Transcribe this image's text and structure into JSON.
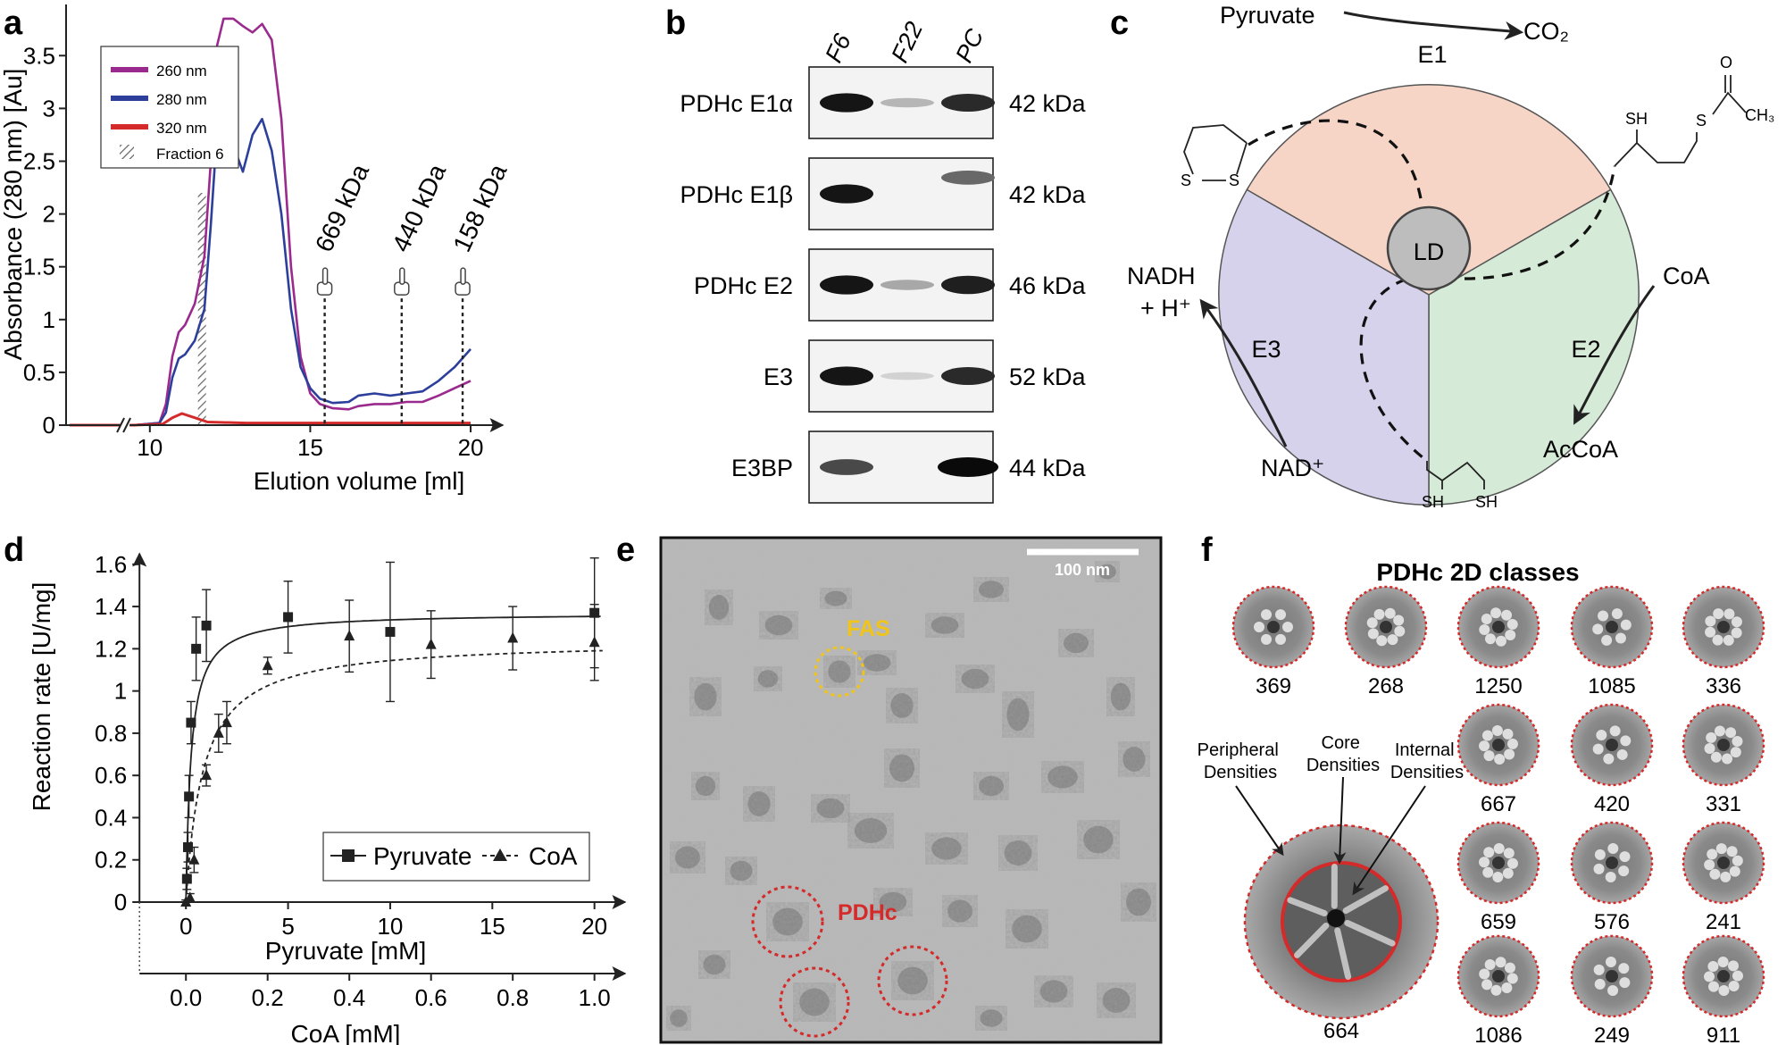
{
  "panels": {
    "a": "a",
    "b": "b",
    "c": "c",
    "d": "d",
    "e": "e",
    "f": "f"
  },
  "panel_a": {
    "chart_data": {
      "type": "line",
      "xlabel": "Elution volume [ml]",
      "ylabel": "Absorbance (280 nm) [Au]",
      "xlim": [
        7.5,
        20.5
      ],
      "ylim": [
        0,
        3.9
      ],
      "x_ticks": [
        10,
        15,
        20
      ],
      "y_ticks": [
        0,
        0.5,
        1,
        1.5,
        2,
        2.5,
        3,
        3.5
      ],
      "x_break_at": 9.2,
      "legend_position": "top-left",
      "series": [
        {
          "name": "260 nm",
          "color": "#9b2a8e",
          "x": [
            7.5,
            9.1,
            9.5,
            10.3,
            10.5,
            10.7,
            10.9,
            11.1,
            11.4,
            11.7,
            11.9,
            12.1,
            12.3,
            12.6,
            12.9,
            13.2,
            13.5,
            13.8,
            14.1,
            14.4,
            14.7,
            15.0,
            15.3,
            15.7,
            16.2,
            16.5,
            17.0,
            17.5,
            18.0,
            18.5,
            19.0,
            19.5,
            20.0
          ],
          "y": [
            0.0,
            0.0,
            0.0,
            0.02,
            0.2,
            0.65,
            0.88,
            0.95,
            1.15,
            1.6,
            2.5,
            3.6,
            3.85,
            3.85,
            3.78,
            3.72,
            3.8,
            3.65,
            2.9,
            1.5,
            0.65,
            0.3,
            0.2,
            0.16,
            0.15,
            0.18,
            0.2,
            0.2,
            0.22,
            0.22,
            0.28,
            0.35,
            0.42
          ]
        },
        {
          "name": "280 nm",
          "color": "#2c3f9b",
          "x": [
            7.5,
            9.1,
            9.5,
            10.3,
            10.5,
            10.7,
            10.9,
            11.1,
            11.4,
            11.7,
            11.9,
            12.1,
            12.3,
            12.6,
            12.9,
            13.2,
            13.5,
            13.8,
            14.1,
            14.4,
            14.7,
            15.0,
            15.3,
            15.7,
            16.2,
            16.5,
            17.0,
            17.5,
            18.0,
            18.5,
            19.0,
            19.5,
            20.0
          ],
          "y": [
            0.0,
            0.0,
            0.0,
            0.02,
            0.12,
            0.45,
            0.63,
            0.67,
            0.8,
            1.1,
            1.9,
            2.8,
            3.05,
            2.65,
            2.4,
            2.75,
            2.9,
            2.6,
            2.0,
            1.1,
            0.55,
            0.35,
            0.25,
            0.21,
            0.22,
            0.28,
            0.3,
            0.28,
            0.3,
            0.32,
            0.42,
            0.55,
            0.72
          ]
        },
        {
          "name": "320 nm",
          "color": "#d42a2a",
          "x": [
            7.5,
            9.1,
            9.5,
            10.4,
            10.7,
            11.0,
            11.4,
            11.8,
            13.0,
            15.0,
            17.0,
            20.0
          ],
          "y": [
            0.0,
            0.0,
            0.0,
            0.01,
            0.07,
            0.11,
            0.07,
            0.03,
            0.02,
            0.02,
            0.02,
            0.02
          ]
        }
      ],
      "fraction": {
        "name": "Fraction 6",
        "from": 11.5,
        "to": 11.75,
        "height": 2.2
      },
      "markers": [
        {
          "label": "669 kDa",
          "x": 15.45
        },
        {
          "label": "440 kDa",
          "x": 17.85
        },
        {
          "label": "158 kDa",
          "x": 19.75
        }
      ]
    }
  },
  "panel_b": {
    "lanes": [
      "F6",
      "F22",
      "PC"
    ],
    "rows": [
      {
        "protein": "PDHc E1α",
        "mw": "42 kDa",
        "bands": [
          0.95,
          0.18,
          0.85
        ]
      },
      {
        "protein": "PDHc E1β",
        "mw": "42 kDa",
        "bands": [
          0.95,
          0.0,
          0.55
        ]
      },
      {
        "protein": "PDHc E2",
        "mw": "46 kDa",
        "bands": [
          0.95,
          0.25,
          0.9
        ]
      },
      {
        "protein": "E3",
        "mw": "52 kDa",
        "bands": [
          0.95,
          0.05,
          0.85
        ]
      },
      {
        "protein": "E3BP",
        "mw": "44 kDa",
        "bands": [
          0.7,
          0.0,
          1.0
        ]
      }
    ]
  },
  "panel_c": {
    "center": "LD",
    "sectors": [
      {
        "name": "E1",
        "color": "#f6d5c7"
      },
      {
        "name": "E2",
        "color": "#d5ead7"
      },
      {
        "name": "E3",
        "color": "#d6d2eb"
      }
    ],
    "labels": {
      "pyruvate": "Pyruvate",
      "co2": "CO₂",
      "nadh": "NADH",
      "h_plus": "+ H⁺",
      "nad": "NAD⁺",
      "coa": "CoA",
      "acetyl_coa": "AcCoA",
      "sh": "SH",
      "s": "S",
      "o": "O",
      "ch3": "CH₃"
    }
  },
  "panel_d": {
    "chart_data": {
      "type": "scatter",
      "ylabel": "Reaction rate [U/mg]",
      "xlabel": "Pyruvate [mM]",
      "xlabel2": "CoA [mM]",
      "xlim": [
        -3.2,
        21.5
      ],
      "x2lim": [
        -0.16,
        1.075
      ],
      "ylim": [
        0,
        1.65
      ],
      "x_ticks": [
        0,
        5,
        10,
        15,
        20
      ],
      "x2_ticks": [
        "0.0",
        "0.2",
        "0.4",
        "0.6",
        "0.8",
        "1.0"
      ],
      "y_ticks": [
        0,
        0.2,
        0.4,
        0.6,
        0.8,
        1.0,
        1.2,
        1.4,
        1.6
      ],
      "legend_position": "bottom-right",
      "series": [
        {
          "name": "Pyruvate",
          "marker": "square",
          "fit": "solid",
          "Vmax": 1.37,
          "Km": 0.25,
          "x": [
            0.05,
            0.1,
            0.15,
            0.25,
            0.5,
            1.0,
            5.0,
            10.0,
            20.0
          ],
          "y": [
            0.11,
            0.26,
            0.5,
            0.85,
            1.2,
            1.31,
            1.35,
            1.28,
            1.37
          ],
          "err": [
            0.05,
            0.07,
            0.1,
            0.1,
            0.15,
            0.17,
            0.17,
            0.33,
            0.26
          ]
        },
        {
          "name": "CoA",
          "marker": "triangle",
          "fit": "dashed",
          "Vmax": 1.24,
          "Km": 0.042,
          "x": [
            0.0,
            0.01,
            0.02,
            0.05,
            0.08,
            0.1,
            0.2,
            0.4,
            0.6,
            0.8,
            1.0
          ],
          "y": [
            0.0,
            0.02,
            0.2,
            0.6,
            0.8,
            0.85,
            1.12,
            1.26,
            1.22,
            1.25,
            1.23
          ],
          "err": [
            0.01,
            0.02,
            0.06,
            0.05,
            0.09,
            0.1,
            0.04,
            0.17,
            0.16,
            0.15,
            0.18
          ]
        }
      ]
    }
  },
  "panel_e": {
    "scale_bar": "100 nm",
    "fas_label": "FAS",
    "pdhc_label": "PDHc"
  },
  "panel_f": {
    "title": "PDHc 2D classes",
    "classes": [
      "369",
      "268",
      "1250",
      "1085",
      "336",
      "667",
      "420",
      "331",
      "659",
      "576",
      "241",
      "1086",
      "249",
      "911"
    ],
    "large_count": "664",
    "annotations": [
      "Peripheral Densities",
      "Core Densities",
      "Internal Densities"
    ],
    "annotation_lines": {
      "peripheral": [
        "Peripheral",
        "Densities"
      ],
      "core": [
        "Core",
        "Densities"
      ],
      "internal": [
        "Internal",
        "Densities"
      ]
    }
  }
}
